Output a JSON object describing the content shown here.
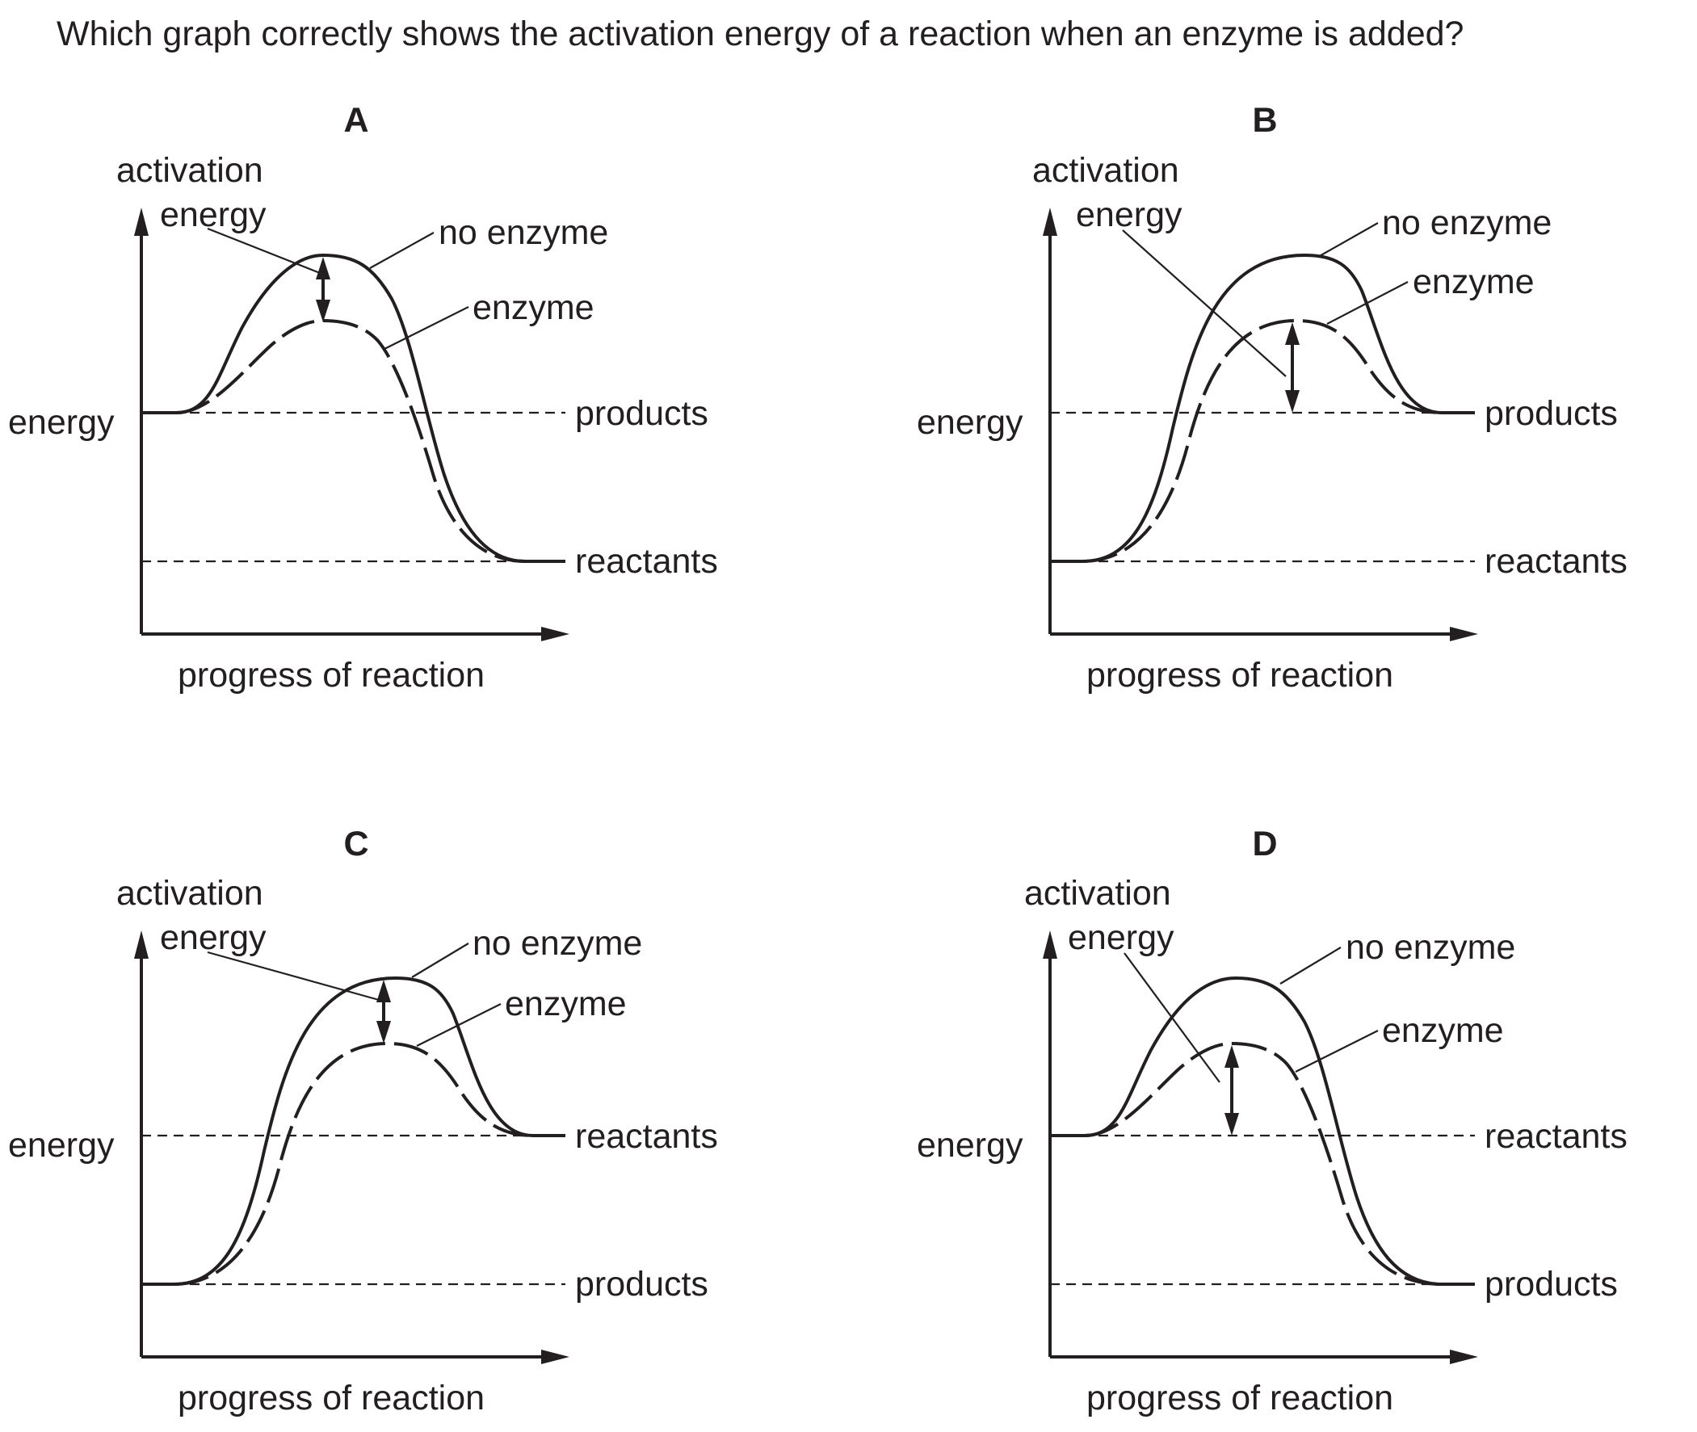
{
  "question": "Which graph correctly shows the activation energy of a reaction when an enzyme is added?",
  "panels": [
    {
      "letter": "A",
      "y_axis_label": "energy",
      "activation_label_1": "activation",
      "activation_label_2": "energy",
      "x_axis_label": "progress of reaction",
      "curve_no_enzyme_label": "no enzyme",
      "curve_enzyme_label": "enzyme",
      "upper_level_label": "products",
      "lower_level_label": "reactants"
    },
    {
      "letter": "B",
      "y_axis_label": "energy",
      "activation_label_1": "activation",
      "activation_label_2": "energy",
      "x_axis_label": "progress of reaction",
      "curve_no_enzyme_label": "no enzyme",
      "curve_enzyme_label": "enzyme",
      "upper_level_label": "products",
      "lower_level_label": "reactants"
    },
    {
      "letter": "C",
      "y_axis_label": "energy",
      "activation_label_1": "activation",
      "activation_label_2": "energy",
      "x_axis_label": "progress of reaction",
      "curve_no_enzyme_label": "no enzyme",
      "curve_enzyme_label": "enzyme",
      "upper_level_label": "reactants",
      "lower_level_label": "products"
    },
    {
      "letter": "D",
      "y_axis_label": "energy",
      "activation_label_1": "activation",
      "activation_label_2": "energy",
      "x_axis_label": "progress of reaction",
      "curve_no_enzyme_label": "no enzyme",
      "curve_enzyme_label": "enzyme",
      "upper_level_label": "reactants",
      "lower_level_label": "products"
    }
  ]
}
